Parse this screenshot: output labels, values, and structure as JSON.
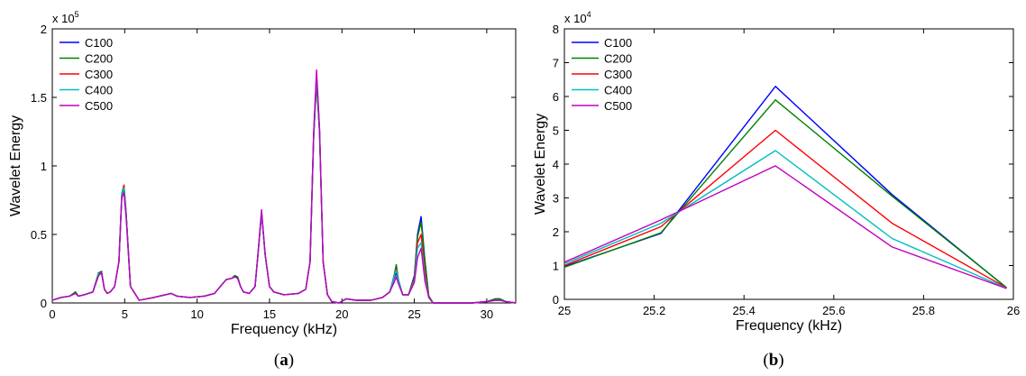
{
  "chart_data": [
    {
      "type": "line",
      "panel_label": "(a)",
      "xlabel": "Frequency (kHz)",
      "ylabel": "Wavelet Energy",
      "y_multiplier": "x 10",
      "y_multiplier_exp": "5",
      "xlim": [
        0,
        32
      ],
      "ylim": [
        0,
        2
      ],
      "xticks": [
        0,
        5,
        10,
        15,
        20,
        25,
        30
      ],
      "xtick_labels": [
        "0",
        "5",
        "10",
        "15",
        "20",
        "25",
        "30"
      ],
      "yticks": [
        0,
        0.5,
        1,
        1.5,
        2
      ],
      "ytick_labels": [
        "0",
        "0.5",
        "1",
        "1.5",
        "2"
      ],
      "legend_position": "top-left",
      "x": [
        0,
        0.6,
        1.2,
        1.6,
        1.8,
        2.2,
        2.8,
        3.2,
        3.4,
        3.6,
        3.8,
        4.0,
        4.3,
        4.6,
        4.8,
        4.95,
        5.1,
        5.4,
        6.0,
        7.0,
        7.8,
        8.2,
        8.6,
        9.5,
        10.5,
        11.2,
        11.6,
        12.0,
        12.4,
        12.6,
        12.8,
        13.0,
        13.2,
        13.6,
        14.0,
        14.2,
        14.45,
        14.7,
        15.0,
        15.3,
        16.0,
        17.0,
        17.5,
        17.8,
        18.05,
        18.25,
        18.45,
        18.7,
        19.0,
        19.3,
        19.8,
        20.3,
        21.0,
        22.0,
        22.8,
        23.3,
        23.6,
        23.75,
        23.9,
        24.2,
        24.6,
        25.0,
        25.22,
        25.47,
        25.73,
        26.0,
        26.3,
        27.0,
        28.0,
        29.0,
        30.0,
        30.6,
        30.9,
        31.3,
        32.0
      ],
      "series": [
        {
          "name": "C100",
          "color": "#0000ff",
          "values": [
            0.02,
            0.04,
            0.05,
            0.08,
            0.05,
            0.06,
            0.08,
            0.22,
            0.23,
            0.1,
            0.07,
            0.08,
            0.12,
            0.3,
            0.78,
            0.84,
            0.65,
            0.12,
            0.02,
            0.04,
            0.06,
            0.07,
            0.05,
            0.04,
            0.05,
            0.07,
            0.12,
            0.17,
            0.18,
            0.2,
            0.19,
            0.12,
            0.08,
            0.07,
            0.12,
            0.35,
            0.65,
            0.35,
            0.12,
            0.08,
            0.06,
            0.07,
            0.1,
            0.3,
            1.2,
            1.62,
            1.25,
            0.3,
            0.06,
            0.01,
            0.0,
            0.03,
            0.02,
            0.02,
            0.04,
            0.08,
            0.18,
            0.22,
            0.16,
            0.06,
            0.06,
            0.2,
            0.5,
            0.63,
            0.31,
            0.05,
            0.0,
            0.0,
            0.0,
            0.0,
            0.01,
            0.03,
            0.03,
            0.01,
            0.0
          ]
        },
        {
          "name": "C200",
          "color": "#008000",
          "values": [
            0.02,
            0.04,
            0.05,
            0.08,
            0.05,
            0.06,
            0.08,
            0.22,
            0.23,
            0.1,
            0.07,
            0.08,
            0.12,
            0.3,
            0.8,
            0.86,
            0.66,
            0.12,
            0.02,
            0.04,
            0.06,
            0.07,
            0.05,
            0.04,
            0.05,
            0.07,
            0.12,
            0.17,
            0.18,
            0.2,
            0.19,
            0.12,
            0.08,
            0.07,
            0.12,
            0.35,
            0.66,
            0.35,
            0.12,
            0.08,
            0.06,
            0.07,
            0.1,
            0.3,
            1.22,
            1.6,
            1.24,
            0.3,
            0.06,
            0.01,
            0.0,
            0.03,
            0.02,
            0.02,
            0.04,
            0.08,
            0.2,
            0.28,
            0.17,
            0.06,
            0.06,
            0.19,
            0.48,
            0.59,
            0.31,
            0.05,
            0.0,
            0.0,
            0.0,
            0.0,
            0.01,
            0.03,
            0.03,
            0.01,
            0.0
          ]
        },
        {
          "name": "C300",
          "color": "#ff0000",
          "values": [
            0.02,
            0.04,
            0.05,
            0.07,
            0.05,
            0.06,
            0.08,
            0.21,
            0.22,
            0.1,
            0.07,
            0.08,
            0.12,
            0.3,
            0.79,
            0.86,
            0.66,
            0.12,
            0.02,
            0.04,
            0.06,
            0.07,
            0.05,
            0.04,
            0.05,
            0.07,
            0.12,
            0.17,
            0.18,
            0.19,
            0.18,
            0.12,
            0.08,
            0.07,
            0.12,
            0.35,
            0.66,
            0.35,
            0.12,
            0.08,
            0.06,
            0.07,
            0.1,
            0.3,
            1.24,
            1.65,
            1.26,
            0.3,
            0.06,
            0.01,
            0.0,
            0.03,
            0.02,
            0.02,
            0.04,
            0.08,
            0.19,
            0.25,
            0.17,
            0.06,
            0.06,
            0.17,
            0.44,
            0.5,
            0.23,
            0.04,
            0.0,
            0.0,
            0.0,
            0.0,
            0.01,
            0.02,
            0.02,
            0.01,
            0.0
          ]
        },
        {
          "name": "C400",
          "color": "#00bfbf",
          "values": [
            0.02,
            0.04,
            0.05,
            0.07,
            0.05,
            0.06,
            0.08,
            0.21,
            0.22,
            0.1,
            0.07,
            0.08,
            0.12,
            0.3,
            0.8,
            0.84,
            0.65,
            0.12,
            0.02,
            0.04,
            0.06,
            0.07,
            0.05,
            0.04,
            0.05,
            0.07,
            0.12,
            0.17,
            0.18,
            0.19,
            0.18,
            0.12,
            0.08,
            0.07,
            0.12,
            0.35,
            0.66,
            0.35,
            0.12,
            0.08,
            0.06,
            0.07,
            0.1,
            0.3,
            1.22,
            1.66,
            1.26,
            0.3,
            0.06,
            0.01,
            0.0,
            0.03,
            0.02,
            0.02,
            0.04,
            0.08,
            0.19,
            0.24,
            0.17,
            0.06,
            0.06,
            0.16,
            0.4,
            0.44,
            0.19,
            0.04,
            0.0,
            0.0,
            0.0,
            0.0,
            0.01,
            0.02,
            0.02,
            0.01,
            0.0
          ]
        },
        {
          "name": "C500",
          "color": "#bf00bf",
          "values": [
            0.02,
            0.04,
            0.05,
            0.07,
            0.05,
            0.06,
            0.08,
            0.2,
            0.22,
            0.1,
            0.07,
            0.08,
            0.12,
            0.3,
            0.77,
            0.8,
            0.62,
            0.12,
            0.02,
            0.04,
            0.06,
            0.07,
            0.05,
            0.04,
            0.05,
            0.07,
            0.12,
            0.17,
            0.18,
            0.19,
            0.18,
            0.12,
            0.08,
            0.07,
            0.12,
            0.36,
            0.68,
            0.36,
            0.12,
            0.08,
            0.06,
            0.07,
            0.1,
            0.3,
            1.24,
            1.7,
            1.28,
            0.3,
            0.06,
            0.01,
            0.0,
            0.03,
            0.02,
            0.02,
            0.04,
            0.08,
            0.15,
            0.19,
            0.14,
            0.06,
            0.06,
            0.15,
            0.33,
            0.4,
            0.16,
            0.04,
            0.0,
            0.0,
            0.0,
            0.0,
            0.01,
            0.02,
            0.02,
            0.01,
            0.0
          ]
        }
      ]
    },
    {
      "type": "line",
      "panel_label": "(b)",
      "xlabel": "Frequency (kHz)",
      "ylabel": "Wavelet Energy",
      "y_multiplier": "x 10",
      "y_multiplier_exp": "4",
      "xlim": [
        25,
        26
      ],
      "ylim": [
        0,
        8
      ],
      "xticks": [
        25,
        25.2,
        25.4,
        25.6,
        25.8,
        26
      ],
      "xtick_labels": [
        "25",
        "25.2",
        "25.4",
        "25.6",
        "25.8",
        "26"
      ],
      "yticks": [
        0,
        1,
        2,
        3,
        4,
        5,
        6,
        7,
        8
      ],
      "ytick_labels": [
        "0",
        "1",
        "2",
        "3",
        "4",
        "5",
        "6",
        "7",
        "8"
      ],
      "legend_position": "top-left",
      "x": [
        25,
        25.215,
        25.47,
        25.73,
        25.985
      ],
      "series": [
        {
          "name": "C100",
          "color": "#0000ff",
          "values": [
            0.97,
            1.95,
            6.3,
            3.1,
            0.34
          ]
        },
        {
          "name": "C200",
          "color": "#008000",
          "values": [
            0.95,
            1.97,
            5.9,
            3.05,
            0.35
          ]
        },
        {
          "name": "C300",
          "color": "#ff0000",
          "values": [
            1.0,
            2.15,
            5.0,
            2.25,
            0.34
          ]
        },
        {
          "name": "C400",
          "color": "#00bfbf",
          "values": [
            1.05,
            2.25,
            4.4,
            1.8,
            0.33
          ]
        },
        {
          "name": "C500",
          "color": "#bf00bf",
          "values": [
            1.1,
            2.35,
            3.95,
            1.55,
            0.32
          ]
        }
      ]
    }
  ]
}
